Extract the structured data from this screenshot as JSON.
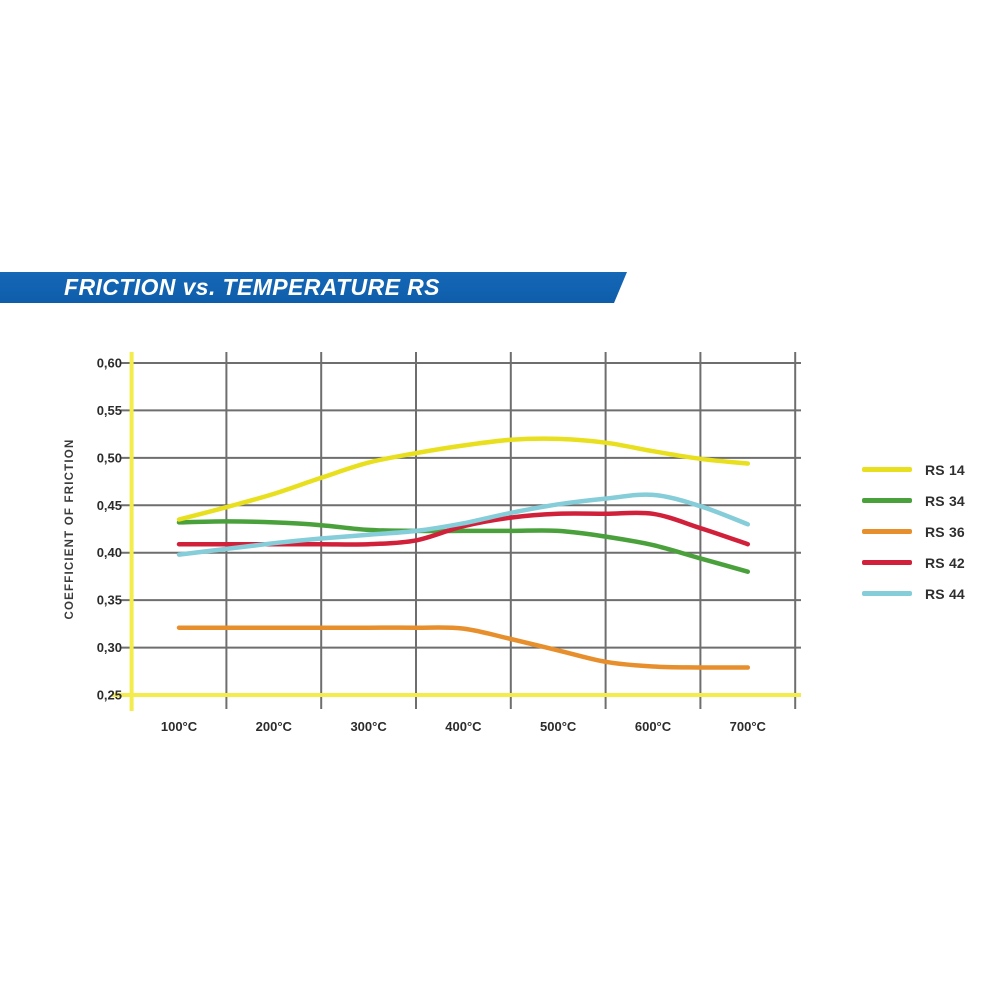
{
  "header": {
    "title": "FRICTION vs. TEMPERATURE RS",
    "banner_color": "#1164b2",
    "text_color": "#ffffff"
  },
  "theme": {
    "grid_color": "#6e6e6e",
    "axis_highlight_color": "#f4ec4d",
    "tick_text_color": "#2c2c2c",
    "legend_text_color": "#2f2f2f",
    "background": "#ffffff"
  },
  "chart_data": {
    "type": "line",
    "title": "FRICTION vs. TEMPERATURE RS",
    "xlabel": "",
    "ylabel": "COEFFICIENT OF FRICTION",
    "x_unit": "°C",
    "ylim": [
      0.25,
      0.6
    ],
    "grid": true,
    "legend_position": "right",
    "x_ticks": [
      {
        "value": 100,
        "label": "100°C"
      },
      {
        "value": 200,
        "label": "200°C"
      },
      {
        "value": 300,
        "label": "300°C"
      },
      {
        "value": 400,
        "label": "400°C"
      },
      {
        "value": 500,
        "label": "500°C"
      },
      {
        "value": 600,
        "label": "600°C"
      },
      {
        "value": 700,
        "label": "700°C"
      }
    ],
    "y_ticks": [
      {
        "value": 0.6,
        "label": "0,60"
      },
      {
        "value": 0.55,
        "label": "0,55"
      },
      {
        "value": 0.5,
        "label": "0,50"
      },
      {
        "value": 0.45,
        "label": "0,45"
      },
      {
        "value": 0.4,
        "label": "0,40"
      },
      {
        "value": 0.35,
        "label": "0,35"
      },
      {
        "value": 0.3,
        "label": "0,30"
      },
      {
        "value": 0.25,
        "label": "0,25"
      }
    ],
    "series": [
      {
        "name": "RS 36",
        "color": "#e78f2d",
        "points": [
          [
            100,
            0.321
          ],
          [
            150,
            0.321
          ],
          [
            200,
            0.321
          ],
          [
            250,
            0.321
          ],
          [
            300,
            0.321
          ],
          [
            350,
            0.321
          ],
          [
            400,
            0.32
          ],
          [
            450,
            0.309
          ],
          [
            500,
            0.297
          ],
          [
            550,
            0.285
          ],
          [
            600,
            0.28
          ],
          [
            650,
            0.279
          ],
          [
            700,
            0.279
          ]
        ]
      },
      {
        "name": "RS 34",
        "color": "#4aa13c",
        "points": [
          [
            100,
            0.432
          ],
          [
            150,
            0.433
          ],
          [
            200,
            0.432
          ],
          [
            250,
            0.429
          ],
          [
            300,
            0.424
          ],
          [
            350,
            0.423
          ],
          [
            400,
            0.423
          ],
          [
            450,
            0.423
          ],
          [
            500,
            0.423
          ],
          [
            550,
            0.417
          ],
          [
            600,
            0.408
          ],
          [
            650,
            0.394
          ],
          [
            700,
            0.38
          ]
        ]
      },
      {
        "name": "RS 42",
        "color": "#d1203a",
        "points": [
          [
            100,
            0.409
          ],
          [
            150,
            0.409
          ],
          [
            200,
            0.409
          ],
          [
            250,
            0.409
          ],
          [
            300,
            0.409
          ],
          [
            350,
            0.413
          ],
          [
            400,
            0.428
          ],
          [
            450,
            0.437
          ],
          [
            500,
            0.441
          ],
          [
            550,
            0.441
          ],
          [
            600,
            0.441
          ],
          [
            650,
            0.426
          ],
          [
            700,
            0.409
          ]
        ]
      },
      {
        "name": "RS 44",
        "color": "#85cdd8",
        "points": [
          [
            100,
            0.398
          ],
          [
            150,
            0.404
          ],
          [
            200,
            0.41
          ],
          [
            250,
            0.415
          ],
          [
            300,
            0.419
          ],
          [
            350,
            0.423
          ],
          [
            400,
            0.431
          ],
          [
            450,
            0.442
          ],
          [
            500,
            0.451
          ],
          [
            550,
            0.457
          ],
          [
            600,
            0.461
          ],
          [
            650,
            0.449
          ],
          [
            700,
            0.43
          ]
        ]
      },
      {
        "name": "RS 14",
        "color": "#e8e01f",
        "points": [
          [
            100,
            0.435
          ],
          [
            150,
            0.448
          ],
          [
            200,
            0.462
          ],
          [
            250,
            0.479
          ],
          [
            300,
            0.495
          ],
          [
            350,
            0.505
          ],
          [
            400,
            0.513
          ],
          [
            450,
            0.519
          ],
          [
            500,
            0.52
          ],
          [
            550,
            0.516
          ],
          [
            600,
            0.507
          ],
          [
            650,
            0.499
          ],
          [
            700,
            0.494
          ]
        ]
      }
    ],
    "legend_order": [
      "RS 14",
      "RS 34",
      "RS 36",
      "RS 42",
      "RS 44"
    ]
  }
}
